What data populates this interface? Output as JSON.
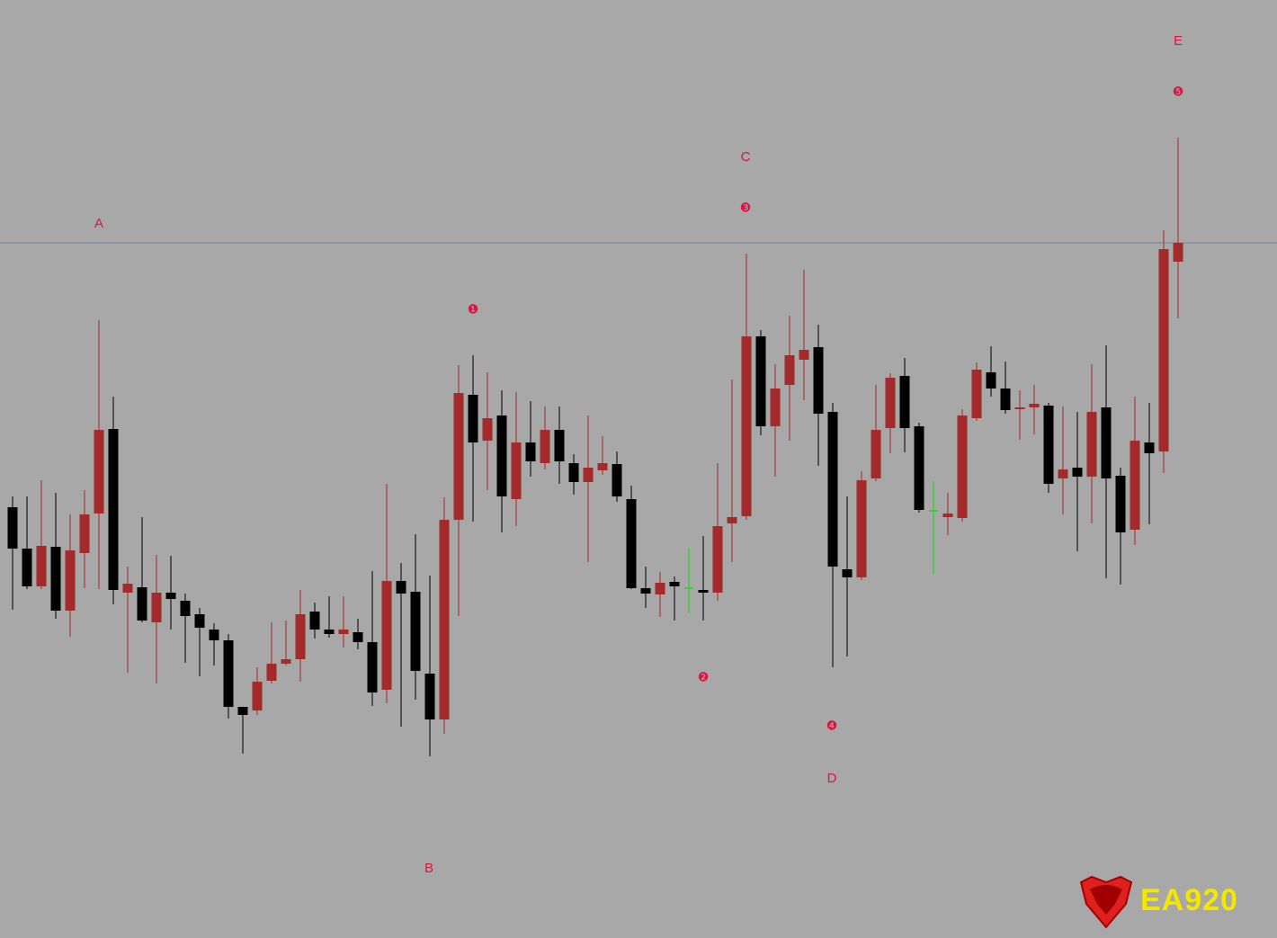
{
  "chart_data": {
    "type": "candlestick",
    "ylim": [
      0,
      1043
    ],
    "up_color": "#a52a2a",
    "down_color": "#000000",
    "doji_color": "#00e000",
    "annotation_color": "#dc143c",
    "hline_color": "#6f8496",
    "hline": 773,
    "annotations": [
      "A",
      "B",
      "C",
      "D",
      "E",
      "❶",
      "❷",
      "❸",
      "❹",
      "❺"
    ],
    "logo": "EA920",
    "open": [
      479,
      433,
      391,
      435,
      364,
      428,
      472,
      566,
      384,
      390,
      351,
      384,
      375,
      360,
      343,
      331,
      257,
      253,
      286,
      305,
      310,
      363,
      343,
      338,
      340,
      329,
      276,
      397,
      385,
      294,
      243,
      465,
      604,
      553,
      581,
      488,
      551,
      528,
      565,
      528,
      507,
      520,
      527,
      488,
      389,
      382,
      396,
      389,
      387,
      384,
      461,
      469,
      669,
      569,
      615,
      643,
      657,
      585,
      410,
      401,
      511,
      567,
      625,
      569,
      475,
      468,
      467,
      578,
      629,
      611,
      588,
      590,
      592,
      511,
      523,
      513,
      590,
      514,
      454,
      551,
      541,
      752
    ],
    "high": [
      491,
      491,
      509,
      495,
      471,
      498,
      687,
      602,
      413,
      468,
      426,
      425,
      383,
      367,
      350,
      338,
      257,
      301,
      351,
      353,
      387,
      373,
      380,
      380,
      355,
      408,
      505,
      417,
      449,
      403,
      490,
      637,
      648,
      629,
      609,
      607,
      597,
      591,
      591,
      538,
      581,
      558,
      541,
      503,
      413,
      407,
      402,
      433,
      447,
      528,
      621,
      761,
      676,
      638,
      692,
      743,
      682,
      595,
      491,
      519,
      615,
      628,
      645,
      573,
      508,
      495,
      588,
      640,
      658,
      641,
      609,
      615,
      595,
      591,
      585,
      638,
      659,
      523,
      602,
      595,
      787,
      890
    ],
    "low": [
      365,
      388,
      388,
      355,
      335,
      389,
      388,
      371,
      295,
      351,
      283,
      343,
      306,
      291,
      303,
      244,
      205,
      248,
      283,
      303,
      285,
      333,
      334,
      323,
      321,
      258,
      261,
      235,
      265,
      202,
      227,
      358,
      463,
      498,
      451,
      458,
      513,
      521,
      505,
      493,
      418,
      515,
      485,
      388,
      367,
      357,
      353,
      361,
      353,
      375,
      418,
      465,
      559,
      513,
      553,
      598,
      525,
      301,
      313,
      398,
      508,
      539,
      540,
      473,
      405,
      448,
      463,
      575,
      602,
      583,
      554,
      560,
      495,
      471,
      430,
      461,
      400,
      393,
      437,
      460,
      517,
      689
    ],
    "close": [
      433,
      391,
      436,
      364,
      431,
      471,
      565,
      387,
      394,
      353,
      384,
      377,
      358,
      345,
      331,
      257,
      248,
      285,
      305,
      310,
      360,
      343,
      338,
      343,
      329,
      273,
      397,
      383,
      297,
      243,
      465,
      606,
      551,
      578,
      491,
      551,
      530,
      565,
      530,
      507,
      523,
      528,
      491,
      389,
      383,
      395,
      391,
      389,
      384,
      458,
      468,
      669,
      569,
      611,
      648,
      654,
      583,
      413,
      401,
      509,
      565,
      623,
      567,
      476,
      475,
      472,
      581,
      632,
      611,
      587,
      590,
      594,
      505,
      521,
      513,
      585,
      511,
      451,
      553,
      539,
      766,
      773
    ]
  }
}
